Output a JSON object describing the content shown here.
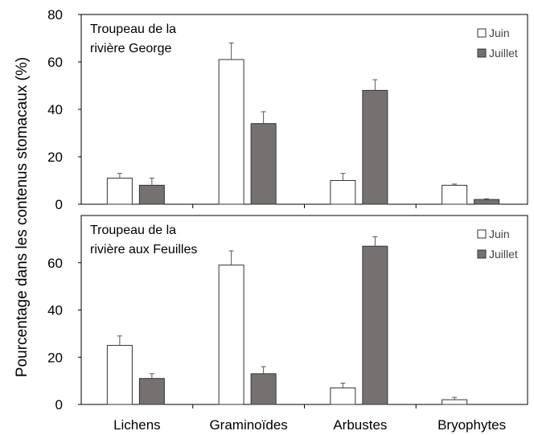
{
  "chart_data": {
    "type": "bar",
    "ylabel": "Pourcentage dans les contenus stomacaux (%)",
    "categories": [
      "Lichens",
      "Graminoïdes",
      "Arbustes",
      "Bryophytes"
    ],
    "colors": {
      "Juin": "#ffffff",
      "Juillet": "#767171",
      "stroke": "#333333"
    },
    "legend": [
      "Juin",
      "Juillet"
    ],
    "panels": [
      {
        "title_lines": [
          "Troupeau de la",
          "rivière George"
        ],
        "ylim": [
          0,
          80
        ],
        "yticks": [
          "0",
          "20",
          "40",
          "60",
          "80"
        ],
        "series": [
          {
            "name": "Juin",
            "values": [
              11,
              61,
              10,
              8
            ],
            "errors": [
              2,
              7,
              3,
              0.5
            ]
          },
          {
            "name": "Juillet",
            "values": [
              8,
              34,
              48,
              2
            ],
            "errors": [
              3,
              5,
              4.5,
              0.3
            ]
          }
        ]
      },
      {
        "title_lines": [
          "Troupeau de la",
          "rivière aux Feuilles"
        ],
        "ylim": [
          0,
          80
        ],
        "yticks": [
          "0",
          "20",
          "40",
          "60"
        ],
        "series": [
          {
            "name": "Juin",
            "values": [
              25,
              59,
              7,
              2
            ],
            "errors": [
              4,
              6,
              2,
              1
            ]
          },
          {
            "name": "Juillet",
            "values": [
              11,
              13,
              67,
              0
            ],
            "errors": [
              2,
              3,
              4,
              0
            ]
          }
        ]
      }
    ]
  }
}
